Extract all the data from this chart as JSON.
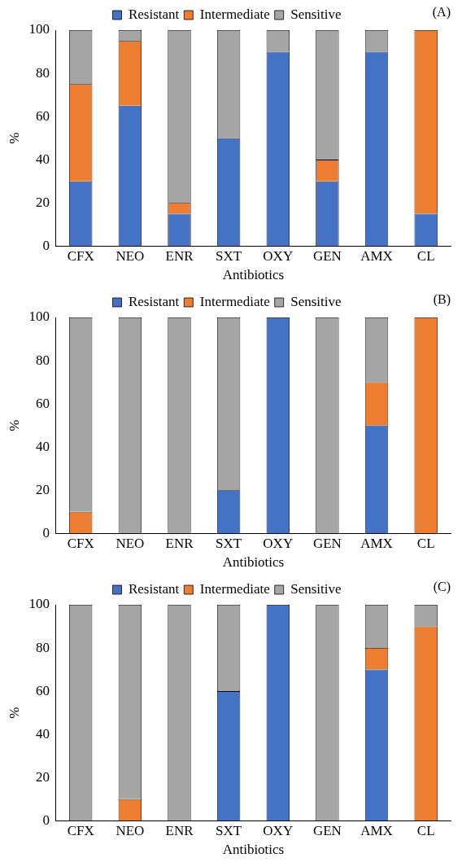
{
  "chart_data": [
    {
      "type": "bar",
      "stacked": true,
      "categories": [
        "CFX",
        "NEO",
        "ENR",
        "SXT",
        "OXY",
        "GEN",
        "AMX",
        "CL"
      ],
      "xlabel": "Antibiotics",
      "ylabel": "%",
      "ylim": [
        0,
        100
      ],
      "yticks": [
        0,
        20,
        40,
        60,
        80,
        100
      ],
      "legend": "top",
      "annotations": [
        "(A)"
      ],
      "series": [
        {
          "name": "Resistant",
          "color": "#4472c4",
          "values": [
            30,
            65,
            15,
            50,
            90,
            30,
            90,
            15
          ]
        },
        {
          "name": "Intermediate",
          "color": "#ed7d31",
          "values": [
            45,
            30,
            5,
            0,
            0,
            10,
            0,
            85
          ]
        },
        {
          "name": "Sensitive",
          "color": "#a5a5a5",
          "values": [
            25,
            5,
            80,
            50,
            10,
            60,
            10,
            0
          ]
        }
      ]
    },
    {
      "type": "bar",
      "stacked": true,
      "categories": [
        "CFX",
        "NEO",
        "ENR",
        "SXT",
        "OXY",
        "GEN",
        "AMX",
        "CL"
      ],
      "xlabel": "Antibiotics",
      "ylabel": "%",
      "ylim": [
        0,
        100
      ],
      "yticks": [
        0,
        20,
        40,
        60,
        80,
        100
      ],
      "legend": "top",
      "annotations": [
        "(B)"
      ],
      "series": [
        {
          "name": "Resistant",
          "color": "#4472c4",
          "values": [
            0,
            0,
            0,
            20,
            100,
            0,
            50,
            0
          ]
        },
        {
          "name": "Intermediate",
          "color": "#ed7d31",
          "values": [
            10,
            0,
            0,
            0,
            0,
            0,
            20,
            100
          ]
        },
        {
          "name": "Sensitive",
          "color": "#a5a5a5",
          "values": [
            90,
            100,
            100,
            80,
            0,
            100,
            30,
            0
          ]
        }
      ]
    },
    {
      "type": "bar",
      "stacked": true,
      "categories": [
        "CFX",
        "NEO",
        "ENR",
        "SXT",
        "OXY",
        "GEN",
        "AMX",
        "CL"
      ],
      "xlabel": "Antibiotics",
      "ylabel": "%",
      "ylim": [
        0,
        100
      ],
      "yticks": [
        0,
        20,
        40,
        60,
        80,
        100
      ],
      "legend": "top",
      "annotations": [
        "(C)"
      ],
      "series": [
        {
          "name": "Resistant",
          "color": "#4472c4",
          "values": [
            0,
            0,
            0,
            60,
            100,
            0,
            70,
            0
          ]
        },
        {
          "name": "Intermediate",
          "color": "#ed7d31",
          "values": [
            0,
            10,
            0,
            0,
            0,
            0,
            10,
            90
          ]
        },
        {
          "name": "Sensitive",
          "color": "#a5a5a5",
          "values": [
            100,
            90,
            100,
            40,
            0,
            100,
            20,
            10
          ]
        }
      ]
    }
  ]
}
